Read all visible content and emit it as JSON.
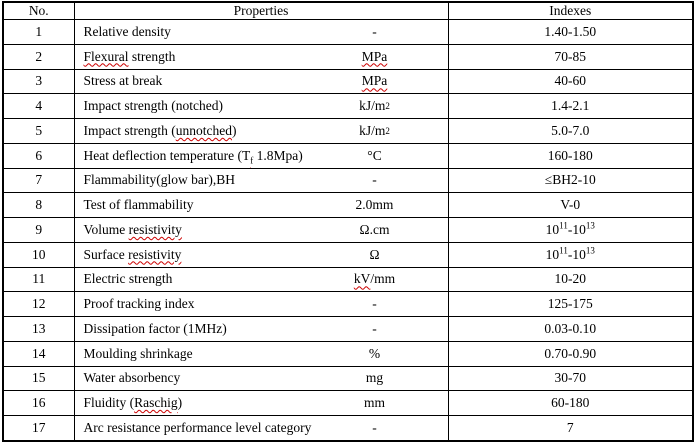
{
  "page": {
    "background_color": "#ffffff",
    "border_color": "#000000",
    "squiggle_color": "#cc0000"
  },
  "table": {
    "headers": {
      "no": "No.",
      "properties": "Properties",
      "indexes": "Indexes"
    },
    "rows": [
      {
        "no": "1",
        "property": [
          [
            "Relative density",
            ""
          ]
        ],
        "unit": [
          [
            "-",
            ""
          ]
        ],
        "index": [
          [
            "1.40-1.50",
            ""
          ]
        ]
      },
      {
        "no": "2",
        "property": [
          [
            "Flexural",
            "sq"
          ],
          [
            " strength",
            ""
          ]
        ],
        "unit": [
          [
            "MPa",
            "sq"
          ]
        ],
        "index": [
          [
            "70-85",
            ""
          ]
        ]
      },
      {
        "no": "3",
        "property": [
          [
            "Stress at break",
            ""
          ]
        ],
        "unit": [
          [
            "MPa",
            "sq"
          ]
        ],
        "index": [
          [
            "40-60",
            ""
          ]
        ]
      },
      {
        "no": "4",
        "property": [
          [
            "Impact strength (notched)",
            ""
          ]
        ],
        "unit": [
          [
            "kJ/m",
            ""
          ],
          [
            "2",
            "sup"
          ]
        ],
        "index": [
          [
            "1.4-2.1",
            ""
          ]
        ]
      },
      {
        "no": "5",
        "property": [
          [
            "Impact strength (",
            ""
          ],
          [
            "unnotched",
            "sq"
          ],
          [
            ")",
            ""
          ]
        ],
        "unit": [
          [
            "kJ/m",
            ""
          ],
          [
            "2",
            "sup"
          ]
        ],
        "index": [
          [
            "5.0-7.0",
            ""
          ]
        ]
      },
      {
        "no": "6",
        "property": [
          [
            "Heat deflection temperature (T",
            ""
          ],
          [
            "f",
            "sub sq"
          ],
          [
            " 1.8Mpa)",
            ""
          ]
        ],
        "unit": [
          [
            "°C",
            ""
          ]
        ],
        "index": [
          [
            "160-180",
            ""
          ]
        ]
      },
      {
        "no": "7",
        "property": [
          [
            "Flammability(glow bar),BH",
            ""
          ]
        ],
        "unit": [
          [
            "-",
            ""
          ]
        ],
        "index": [
          [
            "≤BH2-10",
            ""
          ]
        ]
      },
      {
        "no": "8",
        "property": [
          [
            "Test of flammability",
            ""
          ]
        ],
        "unit": [
          [
            "2.0mm",
            ""
          ]
        ],
        "index": [
          [
            "V-0",
            ""
          ]
        ]
      },
      {
        "no": "9",
        "property": [
          [
            "Volume ",
            ""
          ],
          [
            "resistivity",
            "sq"
          ]
        ],
        "unit": [
          [
            "Ω.cm",
            ""
          ]
        ],
        "index": [
          [
            "10",
            ""
          ],
          [
            "11",
            "sup"
          ],
          [
            "-10",
            ""
          ],
          [
            "13",
            "sup"
          ]
        ]
      },
      {
        "no": "10",
        "property": [
          [
            "Surface ",
            ""
          ],
          [
            "resistivity",
            "sq"
          ]
        ],
        "unit": [
          [
            "Ω",
            ""
          ]
        ],
        "index": [
          [
            "10",
            ""
          ],
          [
            "11",
            "sup"
          ],
          [
            "-10",
            ""
          ],
          [
            "13",
            "sup"
          ]
        ]
      },
      {
        "no": "11",
        "property": [
          [
            "Electric strength",
            ""
          ]
        ],
        "unit": [
          [
            "kV",
            "sq"
          ],
          [
            "/mm",
            ""
          ]
        ],
        "index": [
          [
            "10-20",
            ""
          ]
        ]
      },
      {
        "no": "12",
        "property": [
          [
            "Proof tracking index",
            ""
          ]
        ],
        "unit": [
          [
            "-",
            ""
          ]
        ],
        "index": [
          [
            "125-175",
            ""
          ]
        ]
      },
      {
        "no": "13",
        "property": [
          [
            "Dissipation factor (1MHz)",
            ""
          ]
        ],
        "unit": [
          [
            "-",
            ""
          ]
        ],
        "index": [
          [
            "0.03-0.10",
            ""
          ]
        ]
      },
      {
        "no": "14",
        "property": [
          [
            "Moulding shrinkage",
            ""
          ]
        ],
        "unit": [
          [
            "%",
            ""
          ]
        ],
        "index": [
          [
            "0.70-0.90",
            ""
          ]
        ]
      },
      {
        "no": "15",
        "property": [
          [
            "Water absorbency",
            ""
          ]
        ],
        "unit": [
          [
            "mg",
            ""
          ]
        ],
        "index": [
          [
            "30-70",
            ""
          ]
        ]
      },
      {
        "no": "16",
        "property": [
          [
            "Fluidity (",
            ""
          ],
          [
            "Raschig",
            "sq"
          ],
          [
            ")",
            ""
          ]
        ],
        "unit": [
          [
            "mm",
            ""
          ]
        ],
        "index": [
          [
            "60-180",
            ""
          ]
        ]
      },
      {
        "no": "17",
        "property": [
          [
            "Arc resistance performance level category",
            ""
          ]
        ],
        "unit": [
          [
            "-",
            ""
          ]
        ],
        "index": [
          [
            "7",
            ""
          ]
        ]
      }
    ]
  }
}
